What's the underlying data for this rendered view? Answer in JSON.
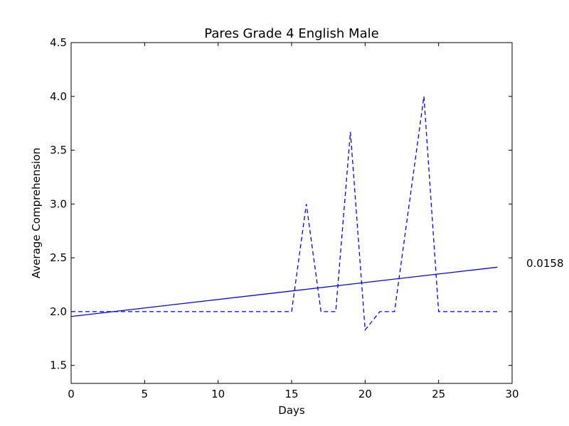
{
  "chart_data": {
    "type": "line",
    "title": "Pares Grade 4 English Male",
    "xlabel": "Days",
    "ylabel": "Average Comprehension",
    "xlim": [
      0,
      30
    ],
    "ylim": [
      1.333,
      4.5
    ],
    "xticks": [
      0,
      5,
      10,
      15,
      20,
      25,
      30
    ],
    "xtick_labels": [
      "0",
      "5",
      "10",
      "15",
      "20",
      "25",
      "30"
    ],
    "yticks": [
      1.5,
      2.0,
      2.5,
      3.0,
      3.5,
      4.0,
      4.5
    ],
    "ytick_labels": [
      "1.5",
      "2.0",
      "2.5",
      "3.0",
      "3.5",
      "4.0",
      "4.5"
    ],
    "grid": false,
    "color": "#0000ff",
    "series": [
      {
        "style": "dashed",
        "x": [
          0,
          15,
          16,
          17,
          18,
          19,
          20,
          21,
          22,
          23,
          24,
          25,
          29
        ],
        "y": [
          2.0,
          2.0,
          3.0,
          2.0,
          2.0,
          3.67,
          1.83,
          2.0,
          2.0,
          3.0,
          4.0,
          2.0,
          2.0
        ]
      },
      {
        "style": "solid",
        "x": [
          0,
          29
        ],
        "y": [
          1.955,
          2.413
        ]
      }
    ],
    "annotation": "0.0158"
  }
}
